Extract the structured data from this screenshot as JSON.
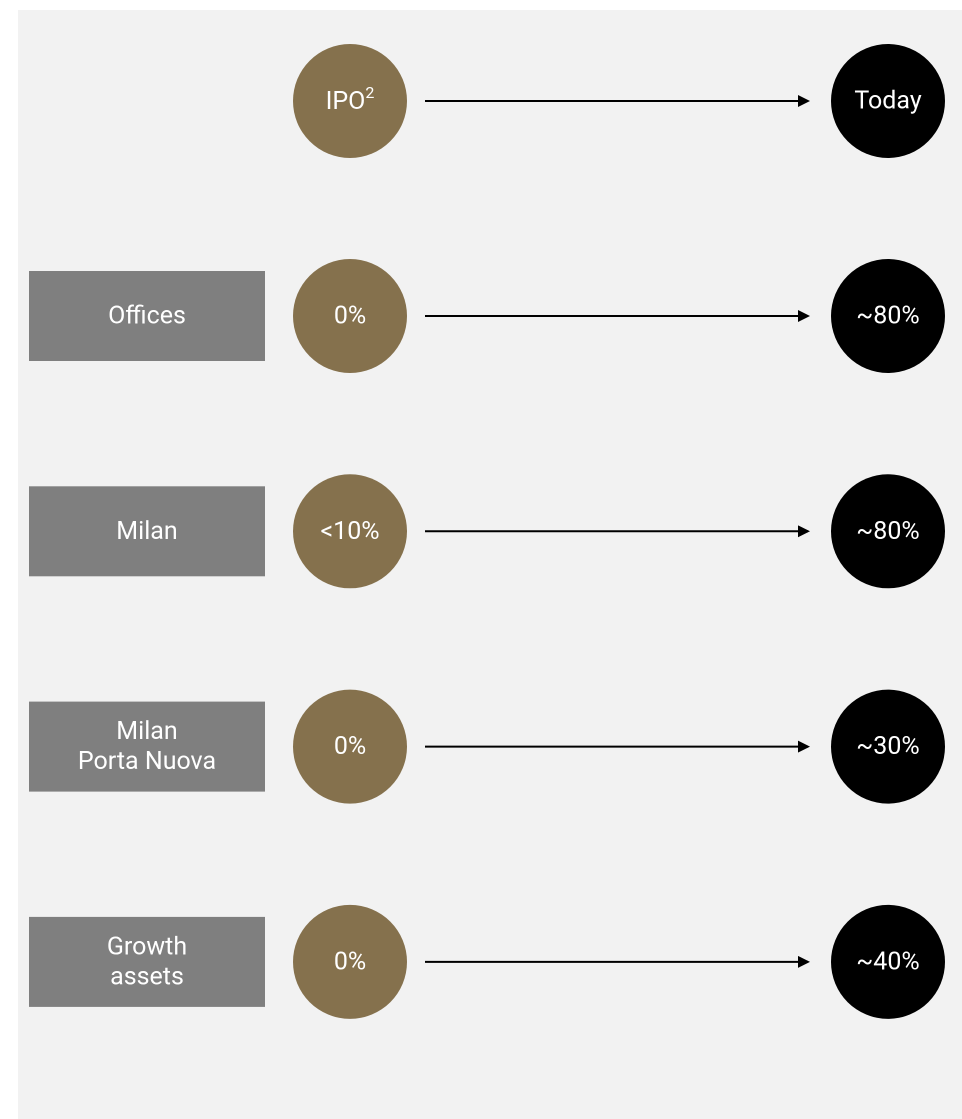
{
  "header": {
    "start": "IPO",
    "start_sup": "2",
    "end": "Today"
  },
  "rows": [
    {
      "label": [
        "Offices"
      ],
      "start": "0%",
      "end": "~80%"
    },
    {
      "label": [
        "Milan"
      ],
      "start": "<10%",
      "end": "~80%"
    },
    {
      "label": [
        "Milan",
        "Porta Nuova"
      ],
      "start": "0%",
      "end": "~30%"
    },
    {
      "label": [
        "Growth",
        "assets"
      ],
      "start": "0%",
      "end": "~40%"
    }
  ]
}
